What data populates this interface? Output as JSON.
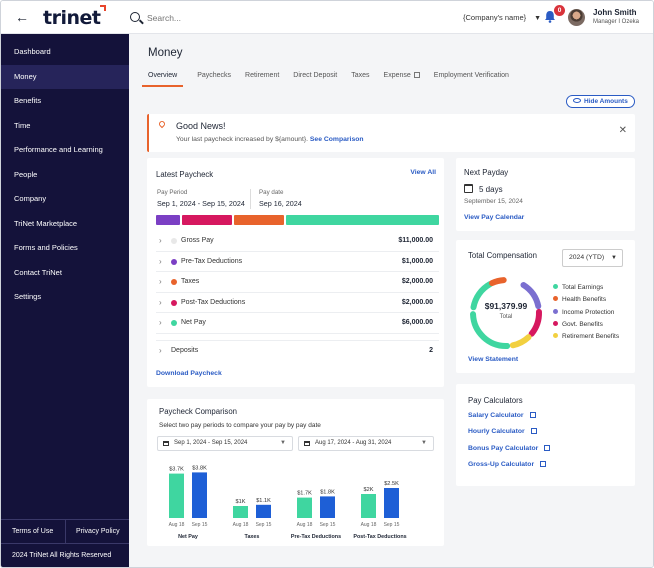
{
  "topbar": {
    "back_icon": "arrow-left-icon",
    "logo": "trinet",
    "search_placeholder": "Search...",
    "company": "{Company's name}",
    "notifications": "0",
    "user_name": "John Smith",
    "user_role": "Manager I Ozeka"
  },
  "sidebar": {
    "items": [
      {
        "label": "Dashboard"
      },
      {
        "label": "Money",
        "active": true
      },
      {
        "label": "Benefits"
      },
      {
        "label": "Time"
      },
      {
        "label": "Performance and Learning"
      },
      {
        "label": "People"
      },
      {
        "label": "Company"
      },
      {
        "label": "TriNet Marketplace"
      },
      {
        "label": "Forms and Policies"
      },
      {
        "label": "Contact TriNet"
      },
      {
        "label": "Settings"
      }
    ],
    "terms": "Terms of Use",
    "privacy": "Privacy Policy",
    "copyright": "2024 TriNet All Rights Reserved"
  },
  "page": {
    "title": "Money",
    "tabs": [
      {
        "label": "Overview",
        "active": true
      },
      {
        "label": "Paychecks"
      },
      {
        "label": "Retirement"
      },
      {
        "label": "Direct Deposit"
      },
      {
        "label": "Taxes"
      },
      {
        "label": "Expense",
        "external": true
      },
      {
        "label": "Employment Verification"
      }
    ],
    "hide_amounts": "Hide Amounts"
  },
  "news": {
    "title": "Good News!",
    "text": "Your last paycheck increased by ${amount}.",
    "link": "See Comparison"
  },
  "latest": {
    "title": "Latest Paycheck",
    "view_all": "View All",
    "period_label": "Pay Period",
    "period": "Sep 1, 2024 - Sep 15, 2024",
    "paydate_label": "Pay date",
    "paydate": "Sep 16, 2024",
    "rows": [
      {
        "name": "Gross Pay",
        "amount": "$11,000.00",
        "color": "#e8e8e8"
      },
      {
        "name": "Pre-Tax Deductions",
        "amount": "$1,000.00",
        "color": "#7b3fc4"
      },
      {
        "name": "Taxes",
        "amount": "$2,000.00",
        "color": "#e8632c"
      },
      {
        "name": "Post-Tax Deductions",
        "amount": "$2,000.00",
        "color": "#d6185f"
      },
      {
        "name": "Net Pay",
        "amount": "$6,000.00",
        "color": "#3fd6a0"
      },
      {
        "name": "Deposits",
        "amount": "2",
        "color": ""
      }
    ],
    "download": "Download Paycheck"
  },
  "payday": {
    "title": "Next Payday",
    "days": "5 days",
    "date": "September 15, 2024",
    "link": "View Pay Calendar"
  },
  "comp": {
    "title": "Total Compensation",
    "select": "2024 (YTD)",
    "total": "$91,379.99",
    "total_label": "Total",
    "link": "View Statement",
    "legend": [
      {
        "label": "Total Earnings",
        "color": "#3fd6a0"
      },
      {
        "label": "Health Benefits",
        "color": "#e8632c"
      },
      {
        "label": "Income Protection",
        "color": "#7b6fd0"
      },
      {
        "label": "Govt. Benefits",
        "color": "#d6185f"
      },
      {
        "label": "Retirement Benefits",
        "color": "#f2d040"
      }
    ]
  },
  "calculators": {
    "title": "Pay Calculators",
    "items": [
      "Salary Calculator",
      "Hourly Calculator",
      "Bonus Pay Calculator",
      "Gross-Up Calculator"
    ]
  },
  "comparison": {
    "title": "Paycheck Comparison",
    "subtitle": "Select two pay periods to compare your pay by pay date",
    "period_a": "Sep 1, 2024 - Sep 15, 2024",
    "period_b": "Aug 17, 2024 - Aug 31, 2024"
  },
  "chart_data": {
    "type": "bar",
    "categories": [
      "Net Pay",
      "Taxes",
      "Pre-Tax Deductions",
      "Post-Tax Deductions"
    ],
    "series": [
      {
        "name": "Aug 18",
        "color": "#3fd6a0",
        "values": [
          3.7,
          1.0,
          1.7,
          2.0
        ],
        "labels": [
          "$3.7K",
          "$1K",
          "$1.7K",
          "$2K"
        ]
      },
      {
        "name": "Sep 15",
        "color": "#1e5fd6",
        "values": [
          3.8,
          1.1,
          1.8,
          2.5
        ],
        "labels": [
          "$3.8K",
          "$1.1K",
          "$1.8K",
          "$2.5K"
        ]
      }
    ],
    "ylim": [
      0,
      4
    ]
  }
}
